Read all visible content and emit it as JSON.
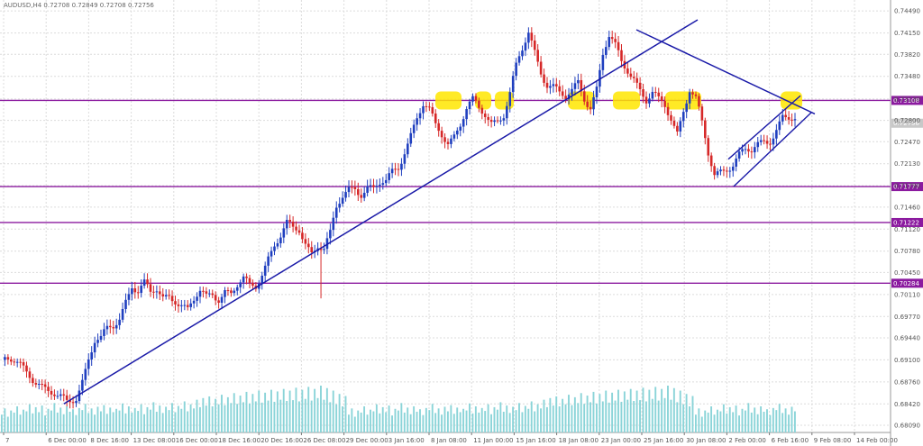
{
  "header": {
    "info": "AUDUSD,H4  0.72708 0.72849 0.72708 0.72756"
  },
  "chart_data": {
    "type": "candlestick",
    "ylim": [
      0.6809,
      0.7452
    ],
    "y_ticks": [
      "0.74490",
      "0.74150",
      "0.73820",
      "0.73480",
      "0.73130",
      "0.72800",
      "0.72470",
      "0.72130",
      "0.71790",
      "0.71460",
      "0.71120",
      "0.70780",
      "0.70450",
      "0.70110",
      "0.69770",
      "0.69440",
      "0.69100",
      "0.68760",
      "0.68420",
      "0.68090"
    ],
    "x_ticks": [
      "7",
      "6 Dec 00:00",
      "8 Dec 16:00",
      "13 Dec 08:00",
      "16 Dec 00:00",
      "18 Dec 16:00",
      "20 Dec 16:00",
      "26 Dec 08:00",
      "29 Dec 00:00",
      "3 Jan 16:00",
      "8 Jan 08:00",
      "11 Jan 00:00",
      "15 Jan 16:00",
      "18 Jan 08:00",
      "23 Jan 00:00",
      "25 Jan 16:00",
      "30 Jan 08:00",
      "2 Feb 00:00",
      "6 Feb 16:00",
      "9 Feb 08:00",
      "14 Feb 00:00"
    ],
    "current_price": "0.72756",
    "up_color": "#1f3fbf",
    "down_color": "#d62828",
    "volume_color": "#8ad4d8",
    "level_color": "#8b1a9f",
    "trend_color": "#1a1aa8",
    "highlight_color": "#ffe600",
    "horizontal_levels": [
      {
        "label": "0.73108",
        "value": 0.73108
      },
      {
        "label": "0.71777",
        "value": 0.71777
      },
      {
        "label": "0.71222",
        "value": 0.71222
      },
      {
        "label": "0.70284",
        "value": 0.70284
      }
    ],
    "path": [
      [
        0,
        0.691
      ],
      [
        3,
        0.6905
      ],
      [
        6,
        0.6898
      ],
      [
        9,
        0.689
      ],
      [
        12,
        0.6878
      ],
      [
        15,
        0.6862
      ],
      [
        18,
        0.6848
      ],
      [
        21,
        0.6842
      ],
      [
        24,
        0.6855
      ],
      [
        26,
        0.6882
      ],
      [
        28,
        0.6915
      ],
      [
        30,
        0.694
      ],
      [
        32,
        0.6938
      ],
      [
        34,
        0.6952
      ],
      [
        36,
        0.696
      ],
      [
        38,
        0.6975
      ],
      [
        40,
        0.7005
      ],
      [
        42,
        0.703
      ],
      [
        44,
        0.7018
      ],
      [
        46,
        0.7025
      ],
      [
        48,
        0.7008
      ],
      [
        50,
        0.7015
      ],
      [
        52,
        0.7005
      ],
      [
        54,
        0.7012
      ],
      [
        56,
        0.7008
      ],
      [
        58,
        0.6998
      ],
      [
        60,
        0.6985
      ],
      [
        62,
        0.6998
      ],
      [
        64,
        0.7012
      ],
      [
        66,
        0.7005
      ],
      [
        68,
        0.7015
      ],
      [
        70,
        0.701
      ],
      [
        72,
        0.702
      ],
      [
        74,
        0.7012
      ],
      [
        76,
        0.7022
      ],
      [
        78,
        0.703
      ],
      [
        80,
        0.702
      ],
      [
        82,
        0.7025
      ],
      [
        84,
        0.7048
      ],
      [
        86,
        0.7072
      ],
      [
        88,
        0.709
      ],
      [
        90,
        0.71
      ],
      [
        92,
        0.7115
      ],
      [
        94,
        0.7108
      ],
      [
        96,
        0.711
      ],
      [
        98,
        0.7092
      ],
      [
        100,
        0.708
      ],
      [
        102,
        0.7092
      ],
      [
        104,
        0.7082
      ],
      [
        106,
        0.71
      ],
      [
        108,
        0.714
      ],
      [
        110,
        0.716
      ],
      [
        112,
        0.7175
      ],
      [
        114,
        0.718
      ],
      [
        116,
        0.7172
      ],
      [
        118,
        0.7178
      ],
      [
        120,
        0.717
      ],
      [
        122,
        0.7178
      ],
      [
        124,
        0.7182
      ],
      [
        126,
        0.72
      ],
      [
        128,
        0.7212
      ],
      [
        130,
        0.7238
      ],
      [
        132,
        0.726
      ],
      [
        134,
        0.7282
      ],
      [
        136,
        0.73
      ],
      [
        138,
        0.729
      ],
      [
        140,
        0.727
      ],
      [
        142,
        0.7262
      ],
      [
        144,
        0.725
      ],
      [
        146,
        0.726
      ],
      [
        148,
        0.7275
      ],
      [
        150,
        0.7295
      ],
      [
        152,
        0.7305
      ],
      [
        154,
        0.7295
      ],
      [
        156,
        0.729
      ],
      [
        158,
        0.728
      ],
      [
        160,
        0.7285
      ],
      [
        162,
        0.7292
      ],
      [
        164,
        0.732
      ],
      [
        166,
        0.7358
      ],
      [
        168,
        0.7385
      ],
      [
        170,
        0.7415
      ],
      [
        172,
        0.7388
      ],
      [
        174,
        0.736
      ],
      [
        176,
        0.734
      ],
      [
        178,
        0.7332
      ],
      [
        180,
        0.7318
      ],
      [
        182,
        0.731
      ],
      [
        184,
        0.7322
      ],
      [
        186,
        0.734
      ],
      [
        188,
        0.732
      ],
      [
        190,
        0.7305
      ],
      [
        192,
        0.733
      ],
      [
        194,
        0.738
      ],
      [
        196,
        0.7405
      ],
      [
        198,
        0.739
      ],
      [
        200,
        0.737
      ],
      [
        202,
        0.7362
      ],
      [
        204,
        0.735
      ],
      [
        206,
        0.733
      ],
      [
        208,
        0.731
      ],
      [
        210,
        0.7318
      ],
      [
        212,
        0.7305
      ],
      [
        214,
        0.73
      ],
      [
        216,
        0.7285
      ],
      [
        218,
        0.7265
      ],
      [
        220,
        0.73
      ],
      [
        222,
        0.733
      ],
      [
        224,
        0.731
      ],
      [
        226,
        0.727
      ],
      [
        228,
        0.7225
      ],
      [
        230,
        0.7195
      ],
      [
        232,
        0.7205
      ],
      [
        234,
        0.7212
      ],
      [
        236,
        0.7215
      ],
      [
        238,
        0.7225
      ],
      [
        240,
        0.723
      ],
      [
        242,
        0.7228
      ],
      [
        244,
        0.724
      ],
      [
        246,
        0.725
      ],
      [
        248,
        0.7255
      ],
      [
        250,
        0.727
      ],
      [
        252,
        0.7285
      ],
      [
        254,
        0.728
      ],
      [
        256,
        0.7276
      ]
    ],
    "volume": [
      0.3,
      0.45,
      0.25,
      0.4,
      0.35,
      0.5,
      0.3,
      0.42,
      0.38,
      0.55,
      0.33,
      0.48,
      0.36,
      0.52,
      0.28,
      0.44,
      0.4,
      0.58,
      0.35,
      0.47,
      0.31,
      0.5,
      0.37,
      0.43,
      0.29,
      0.46,
      0.41,
      0.56,
      0.34,
      0.45,
      0.3,
      0.49,
      0.38,
      0.53,
      0.32,
      0.47,
      0.36,
      0.44,
      0.4,
      0.57,
      0.33,
      0.5,
      0.35,
      0.46,
      0.39,
      0.55,
      0.31,
      0.48,
      0.42,
      0.6,
      0.37,
      0.52,
      0.34,
      0.49,
      0.41,
      0.58,
      0.36,
      0.51,
      0.44,
      0.62,
      0.38,
      0.55,
      0.45,
      0.66,
      0.48,
      0.7,
      0.52,
      0.74,
      0.5,
      0.68,
      0.55,
      0.78,
      0.53,
      0.72,
      0.58,
      0.82,
      0.56,
      0.76,
      0.6,
      0.85,
      0.57,
      0.8,
      0.62,
      0.88,
      0.59,
      0.83,
      0.64,
      0.9,
      0.61,
      0.86,
      0.66,
      0.92,
      0.63,
      0.88,
      0.65,
      0.95,
      0.62,
      0.9,
      0.68,
      0.97,
      0.64,
      0.92,
      0.7,
      1.0,
      0.66,
      0.94,
      0.6,
      0.88,
      0.55,
      0.8,
      0.5,
      0.75
    ]
  }
}
